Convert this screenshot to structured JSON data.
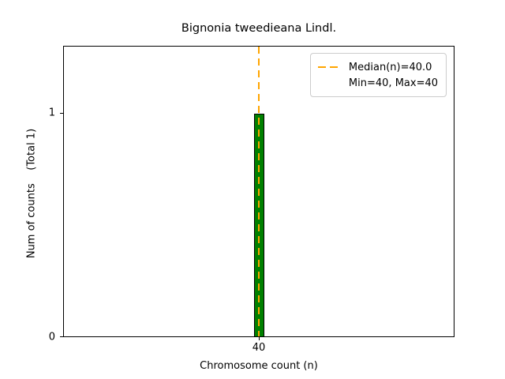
{
  "chart_data": {
    "type": "bar",
    "title": "Bignonia tweedieana Lindl.",
    "xlabel": "Chromosome count (n)",
    "ylabel": "Num of counts    (Total 1)",
    "x": [
      40
    ],
    "values": [
      1
    ],
    "total_counts": 1,
    "xticks": [
      "40"
    ],
    "yticks": [
      "0",
      "1"
    ],
    "ylim": [
      0,
      1.3
    ],
    "grid": false,
    "bar_style": {
      "fill_color": "#008000",
      "edge_color": "#000000"
    },
    "median_line": {
      "value": 40.0,
      "color": "#ffa500",
      "style": "dashed"
    },
    "legend_position": "upper right",
    "legend": [
      "Median(n)=40.0",
      "Min=40, Max=40"
    ]
  }
}
